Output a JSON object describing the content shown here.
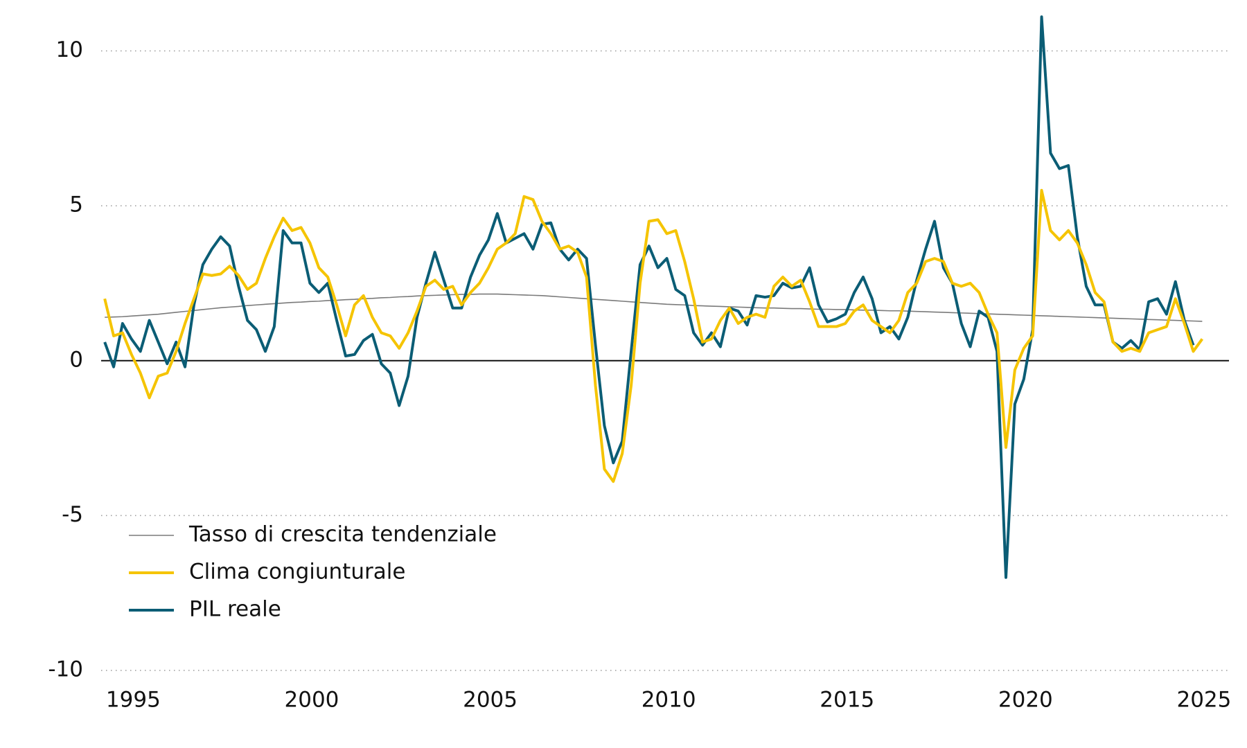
{
  "chart_data": {
    "type": "line",
    "xlim": [
      1994.1,
      2025.7
    ],
    "xticks": [
      1995,
      2000,
      2005,
      2010,
      2015,
      2020,
      2025
    ],
    "ylim": [
      -10,
      10
    ],
    "yticks": [
      -10,
      -5,
      0,
      5,
      10
    ],
    "grid": true,
    "legend": "lower left",
    "x": [
      1994.2,
      1994.45,
      1994.7,
      1994.95,
      1995.2,
      1995.45,
      1995.7,
      1995.95,
      1996.2,
      1996.45,
      1996.7,
      1996.95,
      1997.2,
      1997.45,
      1997.7,
      1997.95,
      1998.2,
      1998.45,
      1998.7,
      1998.95,
      1999.2,
      1999.45,
      1999.7,
      1999.95,
      2000.2,
      2000.45,
      2000.7,
      2000.95,
      2001.2,
      2001.45,
      2001.7,
      2001.95,
      2002.2,
      2002.45,
      2002.7,
      2002.95,
      2003.2,
      2003.45,
      2003.7,
      2003.95,
      2004.2,
      2004.45,
      2004.7,
      2004.95,
      2005.2,
      2005.45,
      2005.7,
      2005.95,
      2006.2,
      2006.45,
      2006.7,
      2006.95,
      2007.2,
      2007.45,
      2007.7,
      2007.95,
      2008.2,
      2008.45,
      2008.7,
      2008.95,
      2009.2,
      2009.45,
      2009.7,
      2009.95,
      2010.2,
      2010.45,
      2010.7,
      2010.95,
      2011.2,
      2011.45,
      2011.7,
      2011.95,
      2012.2,
      2012.45,
      2012.7,
      2012.95,
      2013.2,
      2013.45,
      2013.7,
      2013.95,
      2014.2,
      2014.45,
      2014.7,
      2014.95,
      2015.2,
      2015.45,
      2015.7,
      2015.95,
      2016.2,
      2016.45,
      2016.7,
      2016.95,
      2017.2,
      2017.45,
      2017.7,
      2017.95,
      2018.2,
      2018.45,
      2018.7,
      2018.95,
      2019.2,
      2019.45,
      2019.7,
      2019.95,
      2020.2,
      2020.45,
      2020.7,
      2020.95,
      2021.2,
      2021.45,
      2021.7,
      2021.95,
      2022.2,
      2022.45,
      2022.7,
      2022.95,
      2023.2,
      2023.45,
      2023.7,
      2023.95,
      2024.2,
      2024.45,
      2024.7,
      2024.95
    ],
    "series": [
      {
        "name": "Tasso di crescita tendenziale",
        "color": "#7a7a7a",
        "width": 1.6,
        "values": [
          1.4,
          1.41,
          1.42,
          1.44,
          1.46,
          1.48,
          1.5,
          1.53,
          1.56,
          1.59,
          1.62,
          1.65,
          1.68,
          1.71,
          1.73,
          1.75,
          1.78,
          1.8,
          1.82,
          1.84,
          1.86,
          1.88,
          1.89,
          1.91,
          1.92,
          1.94,
          1.95,
          1.97,
          1.98,
          2.0,
          2.01,
          2.03,
          2.04,
          2.06,
          2.07,
          2.09,
          2.1,
          2.11,
          2.12,
          2.13,
          2.14,
          2.14,
          2.15,
          2.15,
          2.15,
          2.14,
          2.13,
          2.12,
          2.11,
          2.1,
          2.08,
          2.06,
          2.04,
          2.02,
          2.0,
          1.98,
          1.96,
          1.94,
          1.92,
          1.9,
          1.88,
          1.86,
          1.84,
          1.82,
          1.81,
          1.8,
          1.78,
          1.77,
          1.76,
          1.75,
          1.74,
          1.73,
          1.72,
          1.71,
          1.7,
          1.7,
          1.69,
          1.68,
          1.68,
          1.67,
          1.66,
          1.66,
          1.65,
          1.65,
          1.64,
          1.63,
          1.63,
          1.62,
          1.61,
          1.61,
          1.6,
          1.59,
          1.58,
          1.57,
          1.56,
          1.55,
          1.54,
          1.53,
          1.52,
          1.51,
          1.5,
          1.49,
          1.48,
          1.47,
          1.46,
          1.45,
          1.44,
          1.43,
          1.42,
          1.41,
          1.4,
          1.39,
          1.38,
          1.37,
          1.36,
          1.35,
          1.34,
          1.33,
          1.32,
          1.31,
          1.3,
          1.29,
          1.28,
          1.27
        ]
      },
      {
        "name": "PIL reale",
        "color": "#0b5d75",
        "width": 4,
        "values": [
          0.6,
          -0.2,
          1.2,
          0.7,
          0.3,
          1.3,
          0.6,
          -0.1,
          0.6,
          -0.2,
          1.8,
          3.1,
          3.6,
          4.0,
          3.7,
          2.4,
          1.3,
          1.0,
          0.3,
          1.1,
          4.2,
          3.8,
          3.8,
          2.5,
          2.2,
          2.5,
          1.3,
          0.15,
          0.2,
          0.65,
          0.85,
          -0.1,
          -0.4,
          -1.45,
          -0.5,
          1.4,
          2.5,
          3.5,
          2.6,
          1.7,
          1.7,
          2.7,
          3.4,
          3.9,
          4.75,
          3.8,
          3.95,
          4.1,
          3.6,
          4.4,
          4.45,
          3.6,
          3.25,
          3.6,
          3.3,
          0.5,
          -2.1,
          -3.3,
          -2.6,
          0.3,
          3.1,
          3.7,
          3.0,
          3.3,
          2.3,
          2.1,
          0.9,
          0.5,
          0.9,
          0.45,
          1.7,
          1.6,
          1.15,
          2.1,
          2.05,
          2.1,
          2.5,
          2.35,
          2.4,
          3.0,
          1.8,
          1.25,
          1.35,
          1.5,
          2.2,
          2.7,
          2.0,
          0.9,
          1.1,
          0.7,
          1.4,
          2.6,
          3.6,
          4.5,
          3.0,
          2.5,
          1.2,
          0.45,
          1.6,
          1.4,
          0.3,
          -7.0,
          -1.4,
          -0.6,
          1.0,
          11.1,
          6.7,
          6.2,
          6.3,
          4.0,
          2.4,
          1.8,
          1.8,
          0.6,
          0.4,
          0.65,
          0.35,
          1.9,
          2.0,
          1.5,
          2.55,
          1.3,
          0.5,
          null
        ]
      },
      {
        "name": "Clima congiunturale",
        "color": "#f5c400",
        "width": 4,
        "values": [
          2.0,
          0.8,
          0.9,
          0.2,
          -0.4,
          -1.2,
          -0.5,
          -0.4,
          0.3,
          1.2,
          2.0,
          2.8,
          2.75,
          2.8,
          3.05,
          2.75,
          2.3,
          2.5,
          3.3,
          4.0,
          4.6,
          4.2,
          4.3,
          3.8,
          3.0,
          2.7,
          1.8,
          0.8,
          1.8,
          2.1,
          1.4,
          0.9,
          0.8,
          0.4,
          0.9,
          1.6,
          2.4,
          2.6,
          2.3,
          2.4,
          1.8,
          2.2,
          2.5,
          3.0,
          3.6,
          3.8,
          4.1,
          5.3,
          5.2,
          4.5,
          4.1,
          3.6,
          3.7,
          3.5,
          2.7,
          -0.8,
          -3.5,
          -3.9,
          -3.0,
          -0.8,
          2.5,
          4.5,
          4.55,
          4.1,
          4.2,
          3.2,
          2.0,
          0.6,
          0.7,
          1.3,
          1.7,
          1.2,
          1.4,
          1.5,
          1.4,
          2.4,
          2.7,
          2.4,
          2.6,
          1.9,
          1.1,
          1.1,
          1.1,
          1.2,
          1.6,
          1.8,
          1.3,
          1.1,
          0.9,
          1.3,
          2.2,
          2.5,
          3.2,
          3.3,
          3.2,
          2.5,
          2.4,
          2.5,
          2.2,
          1.5,
          0.9,
          -2.8,
          -0.3,
          0.4,
          0.8,
          5.5,
          4.2,
          3.9,
          4.2,
          3.8,
          3.1,
          2.2,
          1.9,
          0.6,
          0.3,
          0.4,
          0.3,
          0.9,
          1.0,
          1.1,
          2.0,
          1.2,
          0.3,
          0.7
        ]
      }
    ],
    "legend_order": [
      0,
      2,
      1
    ]
  }
}
